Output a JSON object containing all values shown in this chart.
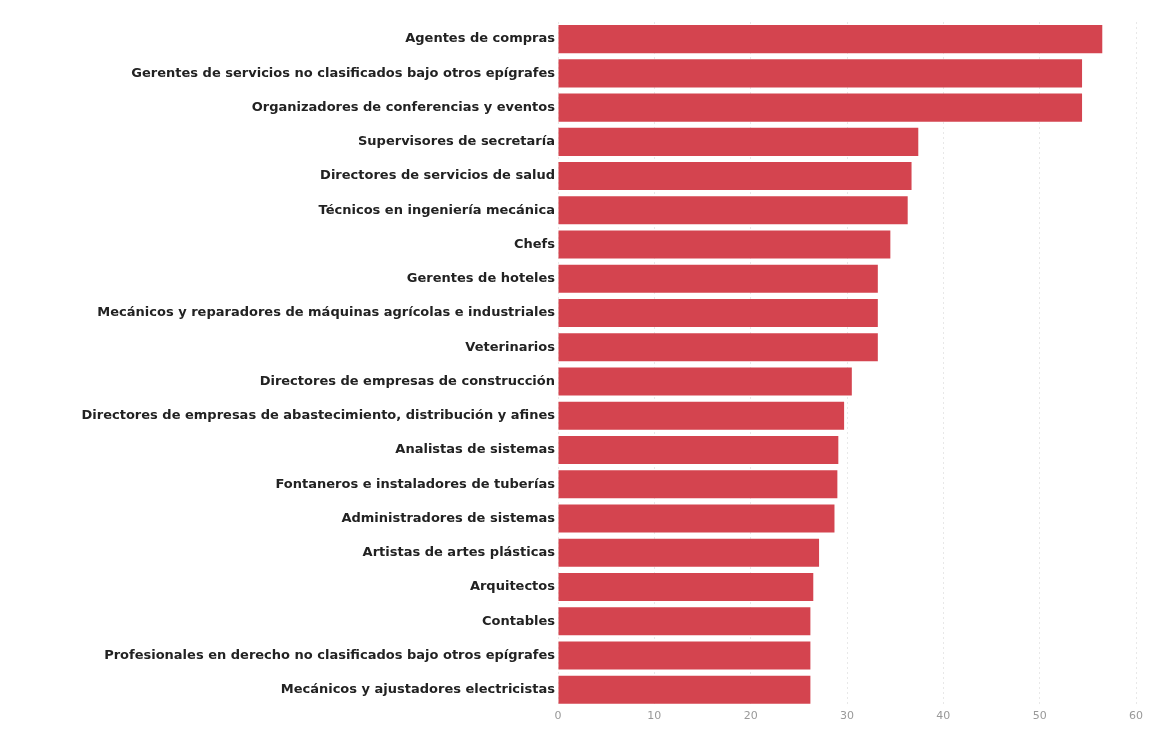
{
  "chart_data": {
    "type": "bar",
    "orientation": "horizontal",
    "categories": [
      "Agentes de compras",
      "Gerentes de servicios no clasificados bajo otros epígrafes",
      "Organizadores de conferencias y eventos",
      "Supervisores de secretaría",
      "Directores de servicios de salud",
      "Técnicos en ingeniería mecánica",
      "Chefs",
      "Gerentes de hoteles",
      "Mecánicos y reparadores de máquinas agrícolas e industriales",
      "Veterinarios",
      "Directores de empresas de construcción",
      "Directores de empresas de abastecimiento, distribución y afines",
      "Analistas de sistemas",
      "Fontaneros e instaladores de tuberías",
      "Administradores de sistemas",
      "Artistas de artes plásticas",
      "Arquitectos",
      "Contables",
      "Profesionales en derecho no clasificados bajo otros epígrafes",
      "Mecánicos y ajustadores electricistas"
    ],
    "values": [
      56.5,
      54.4,
      54.4,
      37.4,
      36.7,
      36.3,
      34.5,
      33.2,
      33.2,
      33.2,
      30.5,
      29.7,
      29.1,
      29.0,
      28.7,
      27.1,
      26.5,
      26.2,
      26.2,
      26.2
    ],
    "color": "#d4444f",
    "xlim": [
      0,
      60
    ],
    "xticks": [
      0,
      10,
      20,
      30,
      40,
      50,
      60
    ],
    "grid": "x"
  }
}
